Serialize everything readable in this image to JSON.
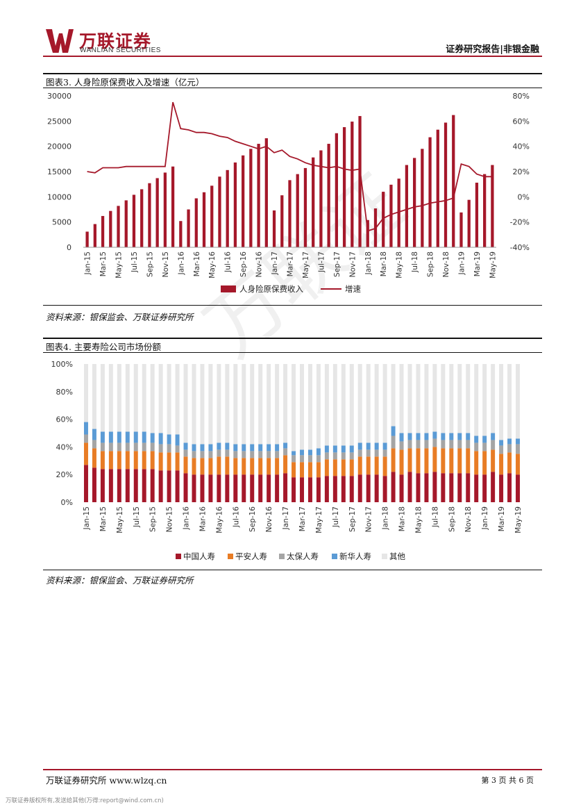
{
  "header": {
    "logo_cn": "万联证券",
    "logo_en": "WANLIAN SECURITIES",
    "report_tag": "证券研究报告|非银金融"
  },
  "watermark": "万联证",
  "figures": [
    {
      "title": "图表3. 人身险原保费收入及增速（亿元）",
      "source": "资料来源：银保监会、万联证券研究所"
    },
    {
      "title": "图表4. 主要寿险公司市场份额",
      "source": "资料来源：银保监会、万联证券研究所"
    }
  ],
  "footer": {
    "left": "万联证券研究所 www.wlzq.cn",
    "right": "第 3 页 共 6 页",
    "copyright": "万联证券版权所有,发送给其他(万得:report@wind.com.cn)"
  },
  "colors": {
    "brand_red": "#a5182a",
    "orange": "#e87c25",
    "gray": "#a5a5a5",
    "blue": "#5b9bd5",
    "light": "#e6e6e6"
  },
  "chart_data": [
    {
      "type": "bar",
      "title": "",
      "categories": [
        "Jan-15",
        "Feb-15",
        "Mar-15",
        "Apr-15",
        "May-15",
        "Jun-15",
        "Jul-15",
        "Aug-15",
        "Sep-15",
        "Oct-15",
        "Nov-15",
        "Dec-15",
        "Jan-16",
        "Feb-16",
        "Mar-16",
        "Apr-16",
        "May-16",
        "Jun-16",
        "Jul-16",
        "Aug-16",
        "Sep-16",
        "Oct-16",
        "Nov-16",
        "Dec-16",
        "Jan-17",
        "Feb-17",
        "Mar-17",
        "Apr-17",
        "May-17",
        "Jun-17",
        "Jul-17",
        "Aug-17",
        "Sep-17",
        "Oct-17",
        "Nov-17",
        "Dec-17",
        "Jan-18",
        "Feb-18",
        "Mar-18",
        "Apr-18",
        "May-18",
        "Jun-18",
        "Jul-18",
        "Aug-18",
        "Sep-18",
        "Oct-18",
        "Nov-18",
        "Dec-18",
        "Jan-19",
        "Feb-19",
        "Mar-19",
        "Apr-19",
        "May-19"
      ],
      "tick_labels": [
        "Jan-15",
        "Mar-15",
        "May-15",
        "Jul-15",
        "Sep-15",
        "Nov-15",
        "Jan-16",
        "Mar-16",
        "May-16",
        "Jul-16",
        "Sep-16",
        "Nov-16",
        "Jan-17",
        "Mar-17",
        "May-17",
        "Jul-17",
        "Sep-17",
        "Nov-17",
        "Jan-18",
        "Mar-18",
        "May-18",
        "Jul-18",
        "Sep-18",
        "Nov-18",
        "Jan-19",
        "Mar-19",
        "May-19"
      ],
      "series": [
        {
          "name": "人身险原保费收入",
          "axis": "left",
          "kind": "bar",
          "values": [
            3100,
            4600,
            6200,
            7200,
            8200,
            9300,
            10400,
            11500,
            12700,
            13700,
            14800,
            16000,
            5200,
            7500,
            9700,
            10900,
            12200,
            14000,
            15300,
            16800,
            18200,
            19500,
            20500,
            21600,
            7300,
            10300,
            13300,
            14500,
            15700,
            17800,
            19200,
            20500,
            22600,
            23800,
            24900,
            26000,
            5400,
            7700,
            11000,
            12400,
            13600,
            16300,
            17700,
            19500,
            21800,
            23300,
            24700,
            26200,
            6900,
            9400,
            12800,
            14500,
            16300
          ]
        },
        {
          "name": "增速",
          "axis": "right",
          "kind": "line",
          "unit": "%",
          "values": [
            20,
            19,
            23,
            23,
            23,
            24,
            24,
            24,
            24,
            24,
            24,
            75,
            54,
            53,
            51,
            51,
            50,
            48,
            47,
            44,
            42,
            40,
            38,
            40,
            35,
            37,
            32,
            30,
            27,
            25,
            24,
            23,
            24,
            22,
            21,
            22,
            -27,
            -25,
            -17,
            -14,
            -12,
            -10,
            -8,
            -7,
            -5,
            -4,
            -3,
            -1,
            26,
            24,
            18,
            16,
            16
          ]
        }
      ],
      "left_axis": {
        "ylim": [
          0,
          30000
        ],
        "ticks": [
          "0",
          "5000",
          "10000",
          "15000",
          "20000",
          "25000",
          "30000"
        ]
      },
      "right_axis": {
        "ylim": [
          -40,
          80
        ],
        "ticks": [
          "-40%",
          "-20%",
          "0%",
          "20%",
          "40%",
          "60%",
          "80%"
        ]
      },
      "legend": [
        "人身险原保费收入",
        "增速"
      ],
      "legend_position": "bottom"
    },
    {
      "type": "bar",
      "stacked": true,
      "title": "",
      "categories": [
        "Jan-15",
        "Feb-15",
        "Mar-15",
        "Apr-15",
        "May-15",
        "Jun-15",
        "Jul-15",
        "Aug-15",
        "Sep-15",
        "Oct-15",
        "Nov-15",
        "Dec-15",
        "Jan-16",
        "Feb-16",
        "Mar-16",
        "Apr-16",
        "May-16",
        "Jun-16",
        "Jul-16",
        "Aug-16",
        "Sep-16",
        "Oct-16",
        "Nov-16",
        "Dec-16",
        "Jan-17",
        "Feb-17",
        "Mar-17",
        "Apr-17",
        "May-17",
        "Jun-17",
        "Jul-17",
        "Aug-17",
        "Sep-17",
        "Oct-17",
        "Nov-17",
        "Dec-17",
        "Jan-18",
        "Feb-18",
        "Mar-18",
        "Apr-18",
        "May-18",
        "Jun-18",
        "Jul-18",
        "Aug-18",
        "Sep-18",
        "Oct-18",
        "Nov-18",
        "Dec-18",
        "Jan-19",
        "Feb-19",
        "Mar-19",
        "Apr-19",
        "May-19"
      ],
      "tick_labels": [
        "Jan-15",
        "Mar-15",
        "May-15",
        "Jul-15",
        "Sep-15",
        "Nov-15",
        "Jan-16",
        "Mar-16",
        "May-16",
        "Jul-16",
        "Sep-16",
        "Nov-16",
        "Jan-17",
        "Mar-17",
        "May-17",
        "Jul-17",
        "Sep-17",
        "Nov-17",
        "Jan-18",
        "Mar-18",
        "May-18",
        "Jul-18",
        "Sep-18",
        "Nov-18",
        "Jan-19",
        "Mar-19",
        "May-19"
      ],
      "ylim": [
        0,
        100
      ],
      "y_ticks": [
        "0%",
        "20%",
        "40%",
        "60%",
        "80%",
        "100%"
      ],
      "series": [
        {
          "name": "中国人寿",
          "color": "#a5182a",
          "values": [
            27,
            25,
            24,
            24,
            24,
            24,
            24,
            24,
            24,
            23,
            23,
            23,
            21,
            20,
            20,
            20,
            20,
            20,
            20,
            20,
            20,
            20,
            20,
            20,
            21,
            18,
            18,
            18,
            18,
            19,
            19,
            19,
            19,
            20,
            20,
            20,
            19,
            22,
            20,
            22,
            21,
            21,
            22,
            21,
            21,
            21,
            21,
            20,
            20,
            22,
            20,
            21,
            20
          ]
        },
        {
          "name": "平安人寿",
          "color": "#e87c25",
          "values": [
            16,
            14,
            13,
            13,
            13,
            13,
            13,
            13,
            13,
            13,
            13,
            13,
            12,
            12,
            12,
            12,
            13,
            13,
            12,
            12,
            12,
            12,
            12,
            12,
            13,
            11,
            11,
            11,
            11,
            12,
            12,
            12,
            12,
            13,
            13,
            13,
            14,
            17,
            18,
            17,
            18,
            18,
            18,
            18,
            18,
            18,
            18,
            17,
            17,
            16,
            15,
            15,
            15
          ]
        },
        {
          "name": "太保人寿",
          "color": "#a5a5a5",
          "values": [
            6,
            6,
            6,
            6,
            6,
            6,
            6,
            6,
            6,
            6,
            6,
            5,
            5,
            5,
            5,
            5,
            5,
            5,
            5,
            5,
            5,
            5,
            5,
            5,
            5,
            5,
            5,
            5,
            5,
            5,
            5,
            5,
            5,
            5,
            5,
            5,
            5,
            9,
            6,
            6,
            6,
            6,
            6,
            6,
            6,
            6,
            6,
            6,
            6,
            7,
            6,
            6,
            7
          ]
        },
        {
          "name": "新华人寿",
          "color": "#5b9bd5",
          "values": [
            9,
            8,
            8,
            8,
            8,
            8,
            8,
            8,
            7,
            8,
            7,
            8,
            5,
            5,
            5,
            5,
            5,
            5,
            5,
            5,
            5,
            5,
            5,
            5,
            4,
            3,
            4,
            4,
            5,
            5,
            5,
            5,
            5,
            5,
            5,
            5,
            5,
            7,
            6,
            5,
            5,
            5,
            5,
            5,
            5,
            5,
            5,
            5,
            5,
            5,
            4,
            4,
            4
          ]
        },
        {
          "name": "其他",
          "color": "#e6e6e6",
          "values": [
            42,
            47,
            49,
            49,
            49,
            49,
            49,
            49,
            50,
            50,
            51,
            51,
            57,
            58,
            58,
            58,
            57,
            57,
            58,
            58,
            58,
            58,
            58,
            58,
            57,
            63,
            62,
            62,
            61,
            59,
            59,
            59,
            59,
            57,
            57,
            57,
            57,
            45,
            50,
            50,
            50,
            50,
            49,
            50,
            50,
            50,
            50,
            52,
            52,
            50,
            55,
            54,
            54
          ]
        }
      ],
      "legend_position": "bottom"
    }
  ]
}
